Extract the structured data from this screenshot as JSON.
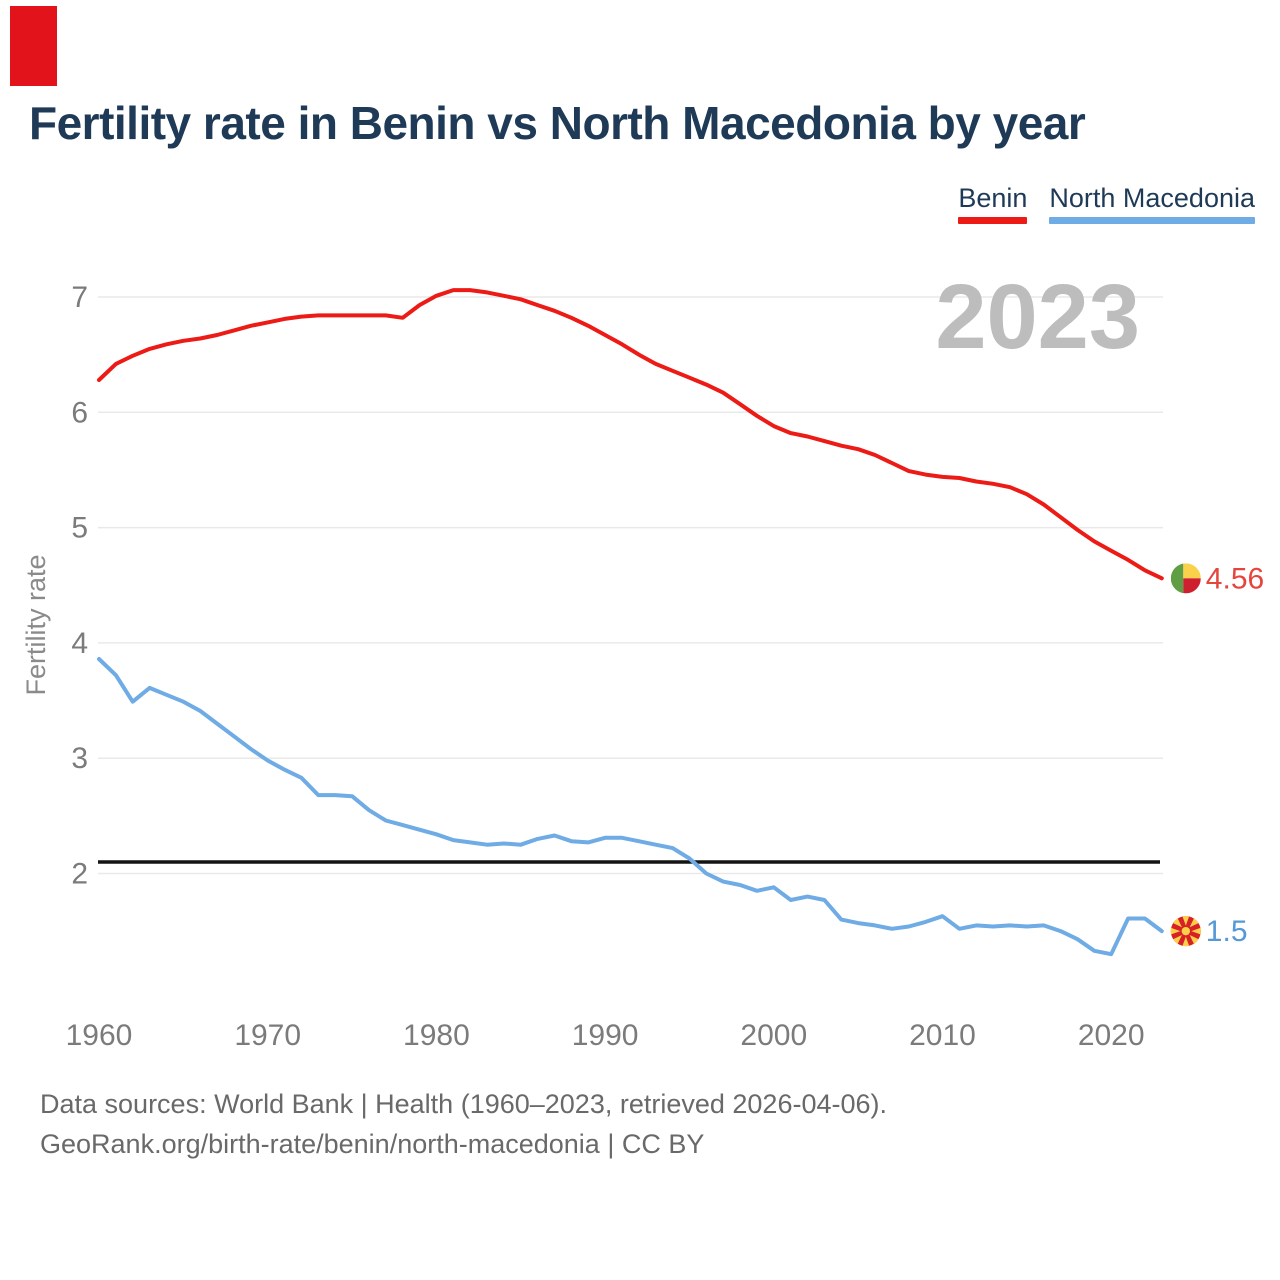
{
  "corner_mark_color": "#e2131b",
  "header": {
    "title": "Fertility rate in Benin vs North Macedonia by year"
  },
  "legend": [
    {
      "label": "Benin",
      "color": "#ed1b16"
    },
    {
      "label": "North Macedonia",
      "color": "#6fabe4"
    }
  ],
  "watermark": "2023",
  "footer": {
    "line1": "Data sources: World Bank | Health (1960–2023, retrieved 2026-04-06).",
    "line2": "GeoRank.org/birth-rate/benin/north-macedonia | CC BY"
  },
  "chart_data": {
    "type": "line",
    "title": "Fertility rate in Benin vs North Macedonia by year",
    "xlabel": "",
    "ylabel": "Fertility rate",
    "x_start": 1960,
    "x_end": 2023,
    "x_ticks": [
      1960,
      1970,
      1980,
      1990,
      2000,
      2010,
      2020
    ],
    "y_ticks": [
      7,
      6,
      5,
      4,
      3,
      2
    ],
    "ylim": [
      1.1,
      7.3
    ],
    "grid": "horizontal",
    "legend_position": "top-right",
    "watermark_year": "2023",
    "reference_line": {
      "value": 2.1,
      "color": "#141414"
    },
    "axis_text_color": "#7b7b7b",
    "grid_color": "#e9e9e9",
    "watermark_color": "#bdbdbd",
    "series": [
      {
        "name": "Benin",
        "color": "#ed1b16",
        "end_label": "4.56",
        "end_label_color": "#e6453c",
        "flag": "benin",
        "flag_colors": {
          "green": "#5f9e42",
          "yellow": "#f9d14b",
          "red": "#cf2030"
        },
        "values": [
          6.28,
          6.42,
          6.49,
          6.55,
          6.59,
          6.62,
          6.64,
          6.67,
          6.71,
          6.75,
          6.78,
          6.81,
          6.83,
          6.84,
          6.84,
          6.84,
          6.84,
          6.84,
          6.82,
          6.93,
          7.01,
          7.06,
          7.06,
          7.04,
          7.01,
          6.98,
          6.93,
          6.88,
          6.82,
          6.75,
          6.67,
          6.59,
          6.5,
          6.42,
          6.36,
          6.3,
          6.24,
          6.17,
          6.07,
          5.97,
          5.88,
          5.82,
          5.79,
          5.75,
          5.71,
          5.68,
          5.63,
          5.56,
          5.49,
          5.46,
          5.44,
          5.43,
          5.4,
          5.38,
          5.35,
          5.29,
          5.2,
          5.09,
          4.98,
          4.88,
          4.8,
          4.72,
          4.63,
          4.56
        ]
      },
      {
        "name": "North Macedonia",
        "color": "#6fabe4",
        "end_label": "1.5",
        "end_label_color": "#5599d6",
        "flag": "north-macedonia",
        "flag_colors": {
          "red": "#d62126",
          "yellow": "#fdd04a"
        },
        "values": [
          3.86,
          3.72,
          3.49,
          3.61,
          3.55,
          3.49,
          3.41,
          3.3,
          3.19,
          3.08,
          2.98,
          2.9,
          2.83,
          2.68,
          2.68,
          2.67,
          2.55,
          2.46,
          2.42,
          2.38,
          2.34,
          2.29,
          2.27,
          2.25,
          2.26,
          2.25,
          2.3,
          2.33,
          2.28,
          2.27,
          2.31,
          2.31,
          2.28,
          2.25,
          2.22,
          2.13,
          2.0,
          1.93,
          1.9,
          1.85,
          1.88,
          1.77,
          1.8,
          1.77,
          1.6,
          1.57,
          1.55,
          1.52,
          1.54,
          1.58,
          1.63,
          1.52,
          1.55,
          1.54,
          1.55,
          1.54,
          1.55,
          1.5,
          1.43,
          1.33,
          1.3,
          1.61,
          1.61,
          1.5
        ]
      }
    ]
  }
}
